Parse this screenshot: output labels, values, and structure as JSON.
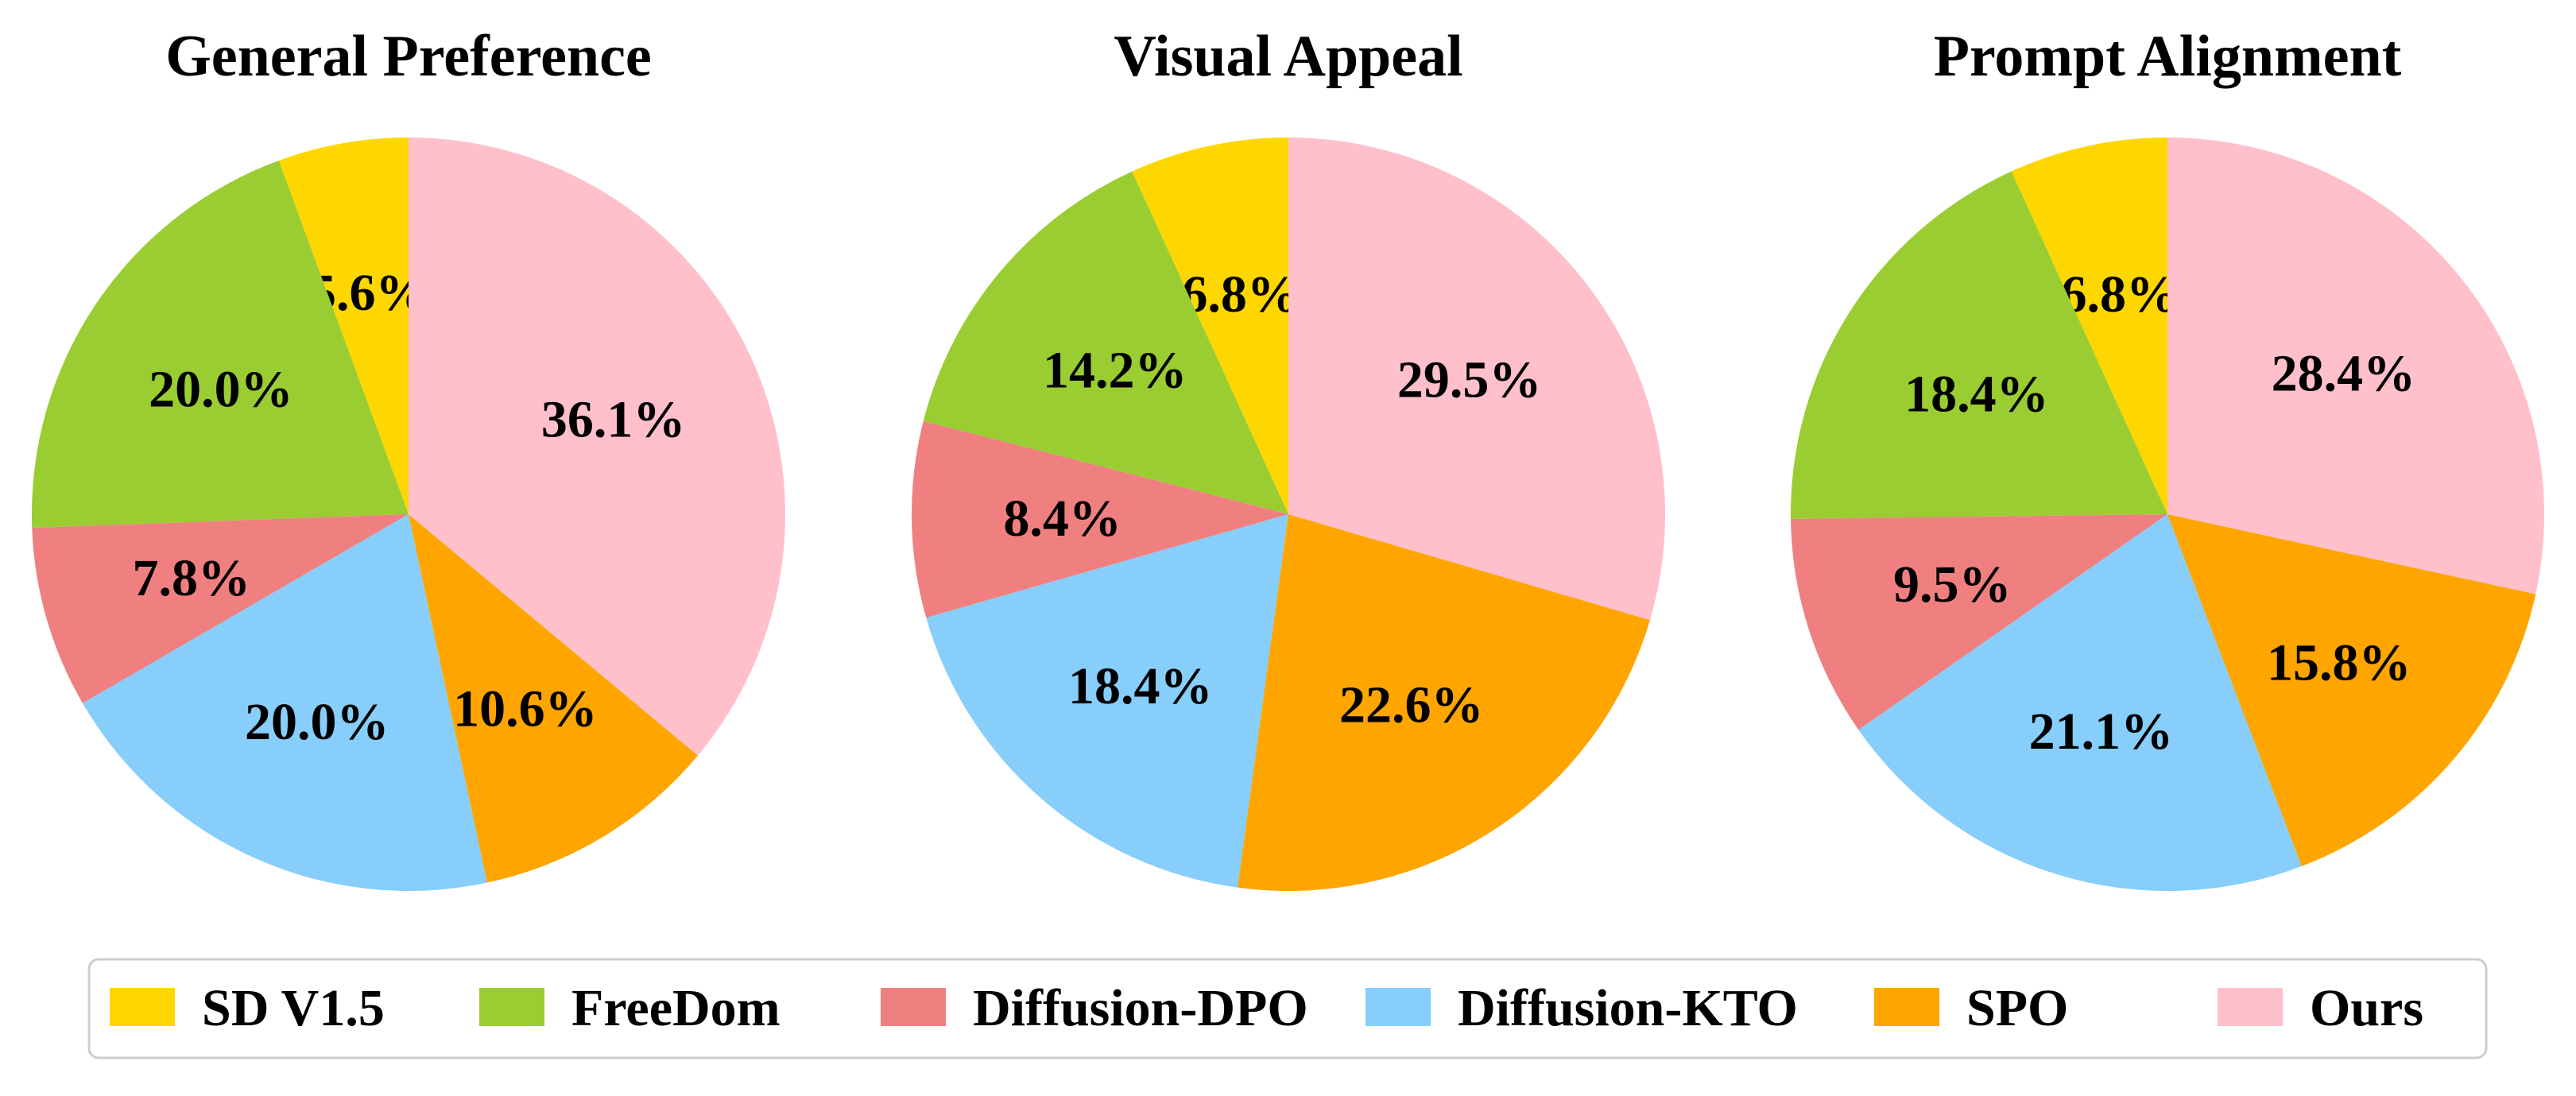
{
  "chart_data": {
    "type": "pie",
    "categories": [
      "SD V1.5",
      "FreeDom",
      "Diffusion-DPO",
      "Diffusion-KTO",
      "SPO",
      "Ours"
    ],
    "colors": [
      "#FFD700",
      "#9ACD32",
      "#F08080",
      "#87CEFA",
      "#FFA500",
      "#FFC0CB"
    ],
    "legend_position": "bottom",
    "charts": [
      {
        "title": "General Preference",
        "values": [
          5.6,
          20.0,
          7.8,
          20.0,
          10.6,
          36.1
        ],
        "labels": [
          "5.6%",
          "20.0%",
          "7.8%",
          "20.0%",
          "10.6%",
          "36.1%"
        ]
      },
      {
        "title": "Visual Appeal",
        "values": [
          6.8,
          14.2,
          8.4,
          18.4,
          22.6,
          29.5
        ],
        "labels": [
          "6.8%",
          "14.2%",
          "8.4%",
          "18.4%",
          "22.6%",
          "29.5%"
        ]
      },
      {
        "title": "Prompt Alignment",
        "values": [
          6.8,
          18.4,
          9.5,
          21.1,
          15.8,
          28.4
        ],
        "labels": [
          "6.8%",
          "18.4%",
          "9.5%",
          "21.1%",
          "15.8%",
          "28.4%"
        ]
      }
    ]
  }
}
